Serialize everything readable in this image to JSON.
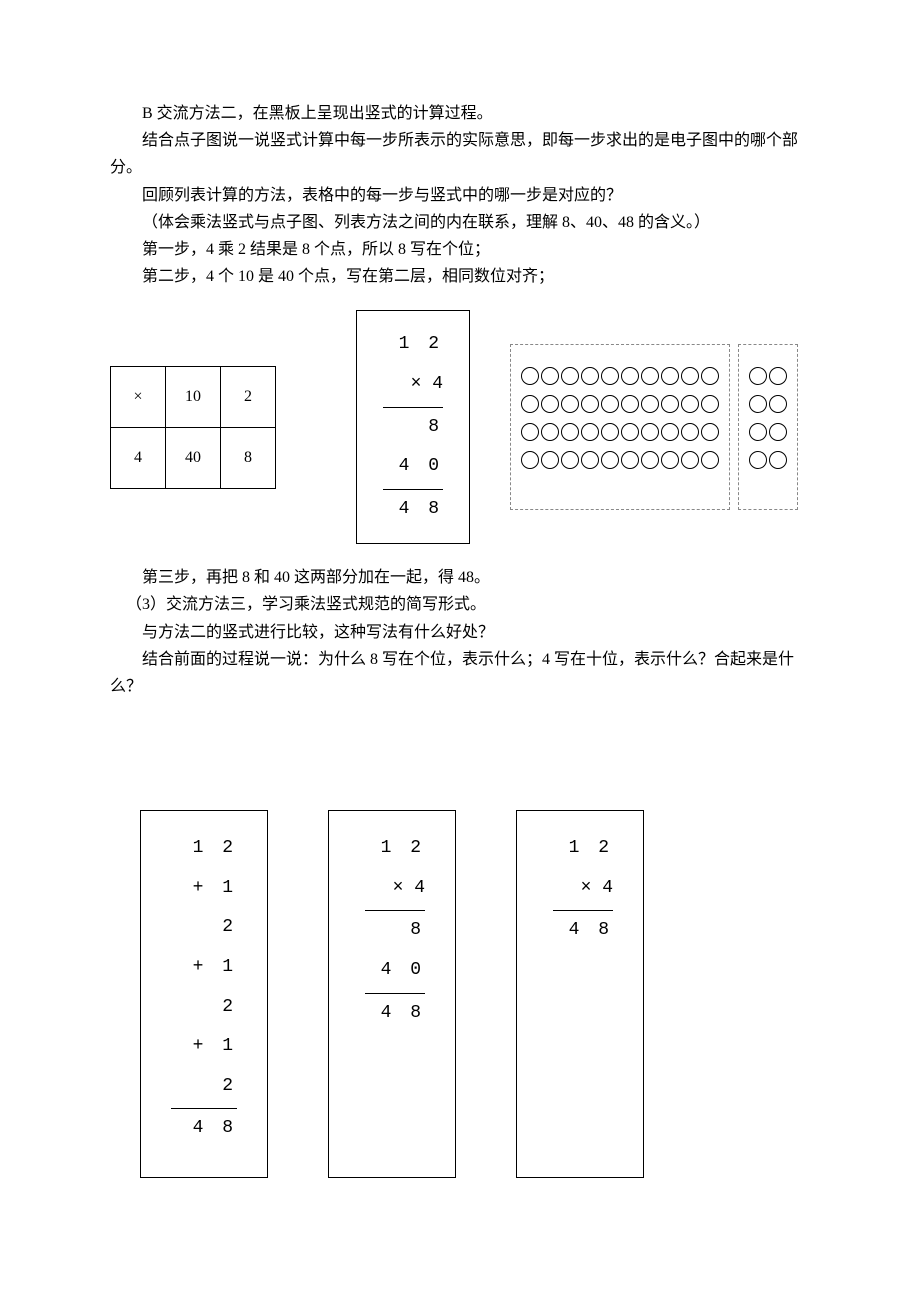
{
  "text": {
    "p1": "B 交流方法二，在黑板上呈现出竖式的计算过程。",
    "p2": "结合点子图说一说竖式计算中每一步所表示的实际意思，即每一步求出的是电子图中的哪个部分。",
    "p3": "回顾列表计算的方法，表格中的每一步与竖式中的哪一步是对应的？",
    "p4": "（体会乘法竖式与点子图、列表方法之间的内在联系，理解 8、40、48 的含义。）",
    "p5": "第一步，4 乘 2 结果是 8 个点，所以 8 写在个位；",
    "p6": "第二步，4 个 10 是 40 个点，写在第二层，相同数位对齐；",
    "p7": "第三步，再把 8 和 40 这两部分加在一起，得 48。",
    "p8": "（3）交流方法三，学习乘法竖式规范的简写形式。",
    "p9": "与方法二的竖式进行比较，这种写法有什么好处？",
    "p10": "结合前面的过程说一说：为什么 8 写在个位，表示什么；4 写在十位，表示什么？合起来是什么？"
  },
  "table": {
    "r1c1": "×",
    "r1c2": "10",
    "r1c3": "2",
    "r2c1": "4",
    "r2c2": "40",
    "r2c3": "8"
  },
  "vcalc": {
    "l1": "1 2",
    "l2": "×   4",
    "l3": "8",
    "l4": "4 0",
    "l5": "4 8"
  },
  "dots": {
    "rows": 4,
    "leftCols": 10,
    "rightCols": 2
  },
  "boxA": {
    "l1": "1 2",
    "l2": "+ 1 2",
    "l3": "+ 1 2",
    "l4": "+ 1 2",
    "l5": "4 8"
  },
  "boxB": {
    "l1": "1 2",
    "l2": "×   4",
    "l3": "8",
    "l4": "4 0",
    "l5": "4 8"
  },
  "boxC": {
    "l1": "1 2",
    "l2": "×   4",
    "l3": "4 8"
  }
}
